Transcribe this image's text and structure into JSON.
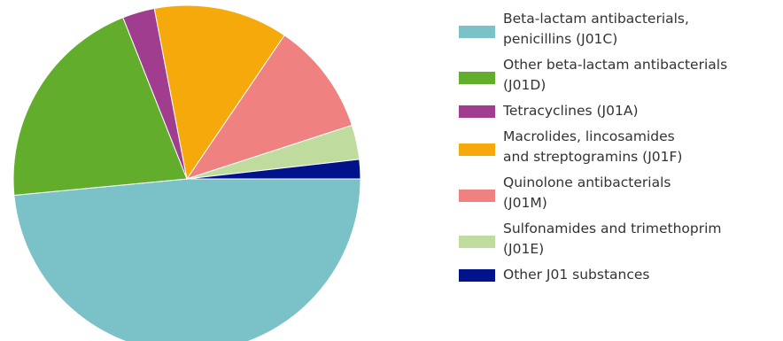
{
  "chart_data": {
    "type": "pie",
    "title": "",
    "start": "three-o-clock",
    "direction": "clockwise",
    "legend": "right",
    "slices": [
      {
        "label": "Beta-lactam antibacterials,\npenicillins (J01C)",
        "value": 48.5,
        "color": "#7ac1c8"
      },
      {
        "label": "Other beta-lactam antibacterials\n(J01D)",
        "value": 20.5,
        "color": "#62ad2c"
      },
      {
        "label": "Tetracyclines (J01A)",
        "value": 3.0,
        "color": "#a03d8f"
      },
      {
        "label": "Macrolides, lincosamides\nand streptogramins (J01F)",
        "value": 12.5,
        "color": "#f5a90a"
      },
      {
        "label": "Quinolone antibacterials\n(J01M)",
        "value": 10.5,
        "color": "#ef8180"
      },
      {
        "label": "Sulfonamides and trimethoprim\n(J01E)",
        "value": 3.2,
        "color": "#bfdc9e"
      },
      {
        "label": "Other J01 substances",
        "value": 1.8,
        "color": "#00138a"
      }
    ]
  }
}
